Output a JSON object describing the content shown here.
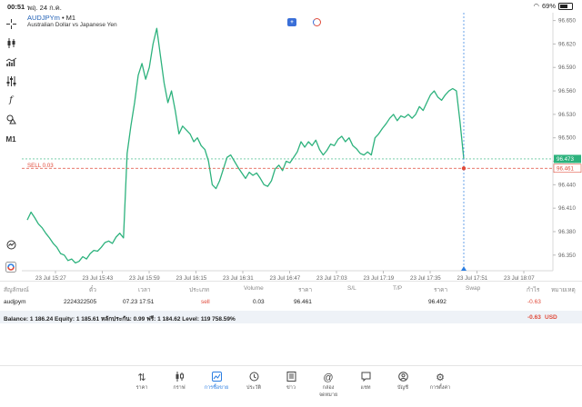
{
  "status_bar": {
    "time": "00:51",
    "date": "พฤ. 24 ก.ค.",
    "battery": "69%"
  },
  "toolbar": {
    "items": [
      "crosshair-icon",
      "candles-icon",
      "indicator-icon",
      "tune-icon",
      "function-icon",
      "objects-icon"
    ],
    "timeframe": "M1"
  },
  "symbol": {
    "name": "AUDJPYm",
    "separator": "•",
    "timeframe": "M1",
    "description": "Australian Dollar vs Japanese Yen"
  },
  "chart_data": {
    "type": "line",
    "title": "",
    "ylim": [
      96.33,
      96.66
    ],
    "y_ticks": [
      "96.650",
      "96.620",
      "96.590",
      "96.560",
      "96.530",
      "96.500",
      "96.470",
      "96.440",
      "96.410",
      "96.380",
      "96.350"
    ],
    "x_tick_labels": [
      "23 Jul 15:27",
      "23 Jul 15:43",
      "23 Jul 15:59",
      "23 Jul 16:15",
      "23 Jul 16:31",
      "23 Jul 16:47",
      "23 Jul 17:03",
      "23 Jul 17:19",
      "23 Jul 17:35",
      "23 Jul 17:51",
      "23 Jul 18:07"
    ],
    "current_price": "96.473",
    "sell_price": "96.461",
    "sell_label": "SELL 0.03",
    "line_color": "#2db27d",
    "series": [
      {
        "values": [
          96.395,
          96.405,
          96.398,
          96.39,
          96.385,
          96.378,
          96.372,
          96.365,
          96.36,
          96.352,
          96.35,
          96.343,
          96.345,
          96.34,
          96.342,
          96.348,
          96.345,
          96.352,
          96.356,
          96.355,
          96.36,
          96.366,
          96.368,
          96.365,
          96.373,
          96.378,
          96.372,
          96.48,
          96.515,
          96.545,
          96.58,
          96.595,
          96.575,
          96.59,
          96.62,
          96.64,
          96.605,
          96.57,
          96.545,
          96.56,
          96.535,
          96.505,
          96.515,
          96.51,
          96.505,
          96.495,
          96.5,
          96.49,
          96.485,
          96.47,
          96.44,
          96.435,
          96.445,
          96.46,
          96.475,
          96.478,
          96.47,
          96.462,
          96.455,
          96.448,
          96.456,
          96.452,
          96.455,
          96.448,
          96.44,
          96.438,
          96.445,
          96.46,
          96.465,
          96.458,
          96.47,
          96.468,
          96.475,
          96.482,
          96.495,
          96.488,
          96.495,
          96.49,
          96.497,
          96.485,
          96.478,
          96.484,
          96.492,
          96.49,
          96.498,
          96.502,
          96.495,
          96.5,
          96.49,
          96.486,
          96.48,
          96.478,
          96.482,
          96.478,
          96.5,
          96.505,
          96.512,
          96.518,
          96.525,
          96.53,
          96.522,
          96.528,
          96.526,
          96.53,
          96.525,
          96.53,
          96.54,
          96.535,
          96.545,
          96.555,
          96.56,
          96.552,
          96.548,
          96.555,
          96.56,
          96.563,
          96.56,
          96.52,
          96.473
        ]
      }
    ]
  },
  "trade_table": {
    "headers": [
      "สัญลักษณ์",
      "ตั๋ว",
      "เวลา",
      "ประเภท",
      "Volume",
      "ราคา",
      "S/L",
      "T/P",
      "ราคา",
      "Swap",
      "กำไร",
      "หมายเหตุ"
    ],
    "row": {
      "symbol": "audjpym",
      "ticket": "2224322505",
      "time": "07.23 17:51",
      "type": "sell",
      "volume": "0.03",
      "open_price": "96.461",
      "sl": "",
      "tp": "",
      "price": "96.492",
      "swap": "",
      "profit": "-0.63",
      "comment": ""
    }
  },
  "balance": {
    "text": "Balance: 1 186.24  Equity: 1 185.61  หลักประกัน: 0.99  ฟรี: 1 184.62  Level: 119 758.59%",
    "profit": "-0.63",
    "currency": "USD"
  },
  "nav": {
    "items": [
      {
        "label": "ราคา",
        "icon": "quotes-icon"
      },
      {
        "label": "กราฟ",
        "icon": "chart-icon"
      },
      {
        "label": "การซื้อขาย",
        "icon": "trade-icon",
        "active": true
      },
      {
        "label": "ประวัติ",
        "icon": "history-icon"
      },
      {
        "label": "ข่าว",
        "icon": "news-icon"
      },
      {
        "label": "กล่องจดหมาย",
        "icon": "mailbox-icon"
      },
      {
        "label": "แชท",
        "icon": "chat-icon"
      },
      {
        "label": "บัญชี",
        "icon": "account-icon"
      },
      {
        "label": "การตั้งค่า",
        "icon": "settings-icon"
      }
    ]
  },
  "colors": {
    "accent": "#2a7de1",
    "sell": "#e04b3b",
    "line": "#2db27d"
  }
}
